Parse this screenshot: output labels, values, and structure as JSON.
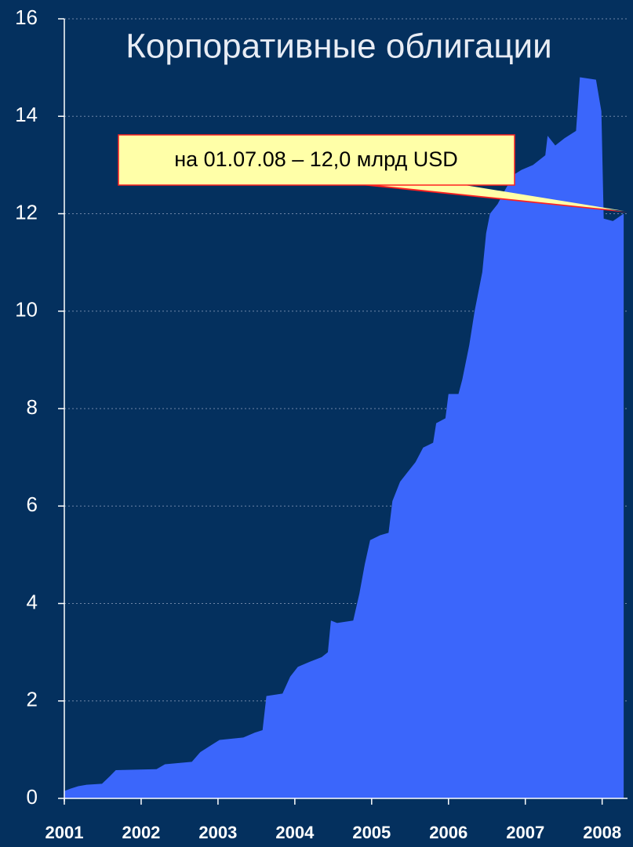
{
  "chart_data": {
    "type": "area",
    "title": "Корпоративные облигации",
    "annotation": "на 01.07.08 – 12,0 млрд USD",
    "x": [
      2001.0,
      2001.08,
      2001.18,
      2001.29,
      2001.49,
      2001.59,
      2001.67,
      2002.2,
      2002.31,
      2002.66,
      2002.77,
      2002.92,
      2003.02,
      2003.33,
      2003.48,
      2003.58,
      2003.63,
      2003.84,
      2003.94,
      2004.04,
      2004.19,
      2004.35,
      2004.43,
      2004.47,
      2004.55,
      2004.76,
      2004.84,
      2004.91,
      2004.98,
      2005.11,
      2005.22,
      2005.27,
      2005.37,
      2005.47,
      2005.57,
      2005.67,
      2005.8,
      2005.84,
      2005.96,
      2006.0,
      2006.13,
      2006.18,
      2006.27,
      2006.34,
      2006.44,
      2006.49,
      2006.54,
      2006.64,
      2006.74,
      2006.85,
      2006.95,
      2007.1,
      2007.26,
      2007.29,
      2007.39,
      2007.51,
      2007.66,
      2007.71,
      2007.92,
      2007.99,
      2008.02,
      2008.14,
      2008.28
    ],
    "series": [
      {
        "color": "#3b66fb",
        "values": [
          0.15,
          0.2,
          0.25,
          0.28,
          0.3,
          0.45,
          0.58,
          0.6,
          0.7,
          0.75,
          0.95,
          1.1,
          1.2,
          1.25,
          1.35,
          1.4,
          2.1,
          2.15,
          2.5,
          2.7,
          2.8,
          2.9,
          3.0,
          3.65,
          3.6,
          3.65,
          4.2,
          4.8,
          5.3,
          5.4,
          5.45,
          6.1,
          6.5,
          6.7,
          6.9,
          7.2,
          7.3,
          7.7,
          7.8,
          8.3,
          8.3,
          8.6,
          9.3,
          10.0,
          10.8,
          11.6,
          12.0,
          12.2,
          12.5,
          12.8,
          12.9,
          13.0,
          13.2,
          13.6,
          13.4,
          13.55,
          13.7,
          14.8,
          14.75,
          14.1,
          11.9,
          11.85,
          12.0
        ]
      }
    ],
    "xlim": [
      2001,
      2008.33
    ],
    "xticks": [
      2001,
      2002,
      2003,
      2004,
      2005,
      2006,
      2007,
      2008
    ],
    "ylim": [
      0,
      16
    ],
    "yticks": [
      0,
      2,
      4,
      6,
      8,
      10,
      12,
      14,
      16
    ],
    "grid": true
  }
}
